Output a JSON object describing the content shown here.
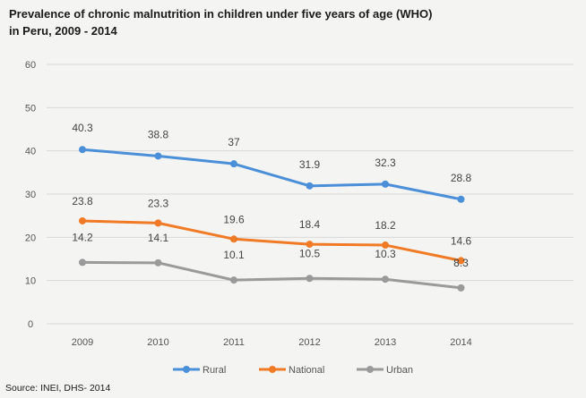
{
  "title_line1": "Prevalence of chronic malnutrition in children under five years of age (WHO)",
  "title_line2": "in Peru, 2009 - 2014",
  "source": "Source: INEI, DHS- 2014",
  "chart_data": {
    "type": "line",
    "x": [
      "2009",
      "2010",
      "2011",
      "2012",
      "2013",
      "2014"
    ],
    "ylim": [
      0,
      60
    ],
    "yticks": [
      0,
      10,
      20,
      30,
      40,
      50,
      60
    ],
    "grid": true,
    "legend_position": "bottom",
    "series": [
      {
        "name": "Rural",
        "color": "#4a8fd8",
        "values": [
          40.3,
          38.8,
          37,
          31.9,
          32.3,
          28.8
        ],
        "labels": [
          "40.3",
          "38.8",
          "37",
          "31.9",
          "32.3",
          "28.8"
        ]
      },
      {
        "name": "National",
        "color": "#f07a26",
        "values": [
          23.8,
          23.3,
          19.6,
          18.4,
          18.2,
          14.6
        ],
        "labels": [
          "23.8",
          "23.3",
          "19.6",
          "18.4",
          "18.2",
          "14.6"
        ]
      },
      {
        "name": "Urban",
        "color": "#9a9a9a",
        "values": [
          14.2,
          14.1,
          10.1,
          10.5,
          10.3,
          8.3
        ],
        "labels": [
          "14.2",
          "14.1",
          "10.1",
          "10.5",
          "10.3",
          "8.3"
        ]
      }
    ]
  }
}
